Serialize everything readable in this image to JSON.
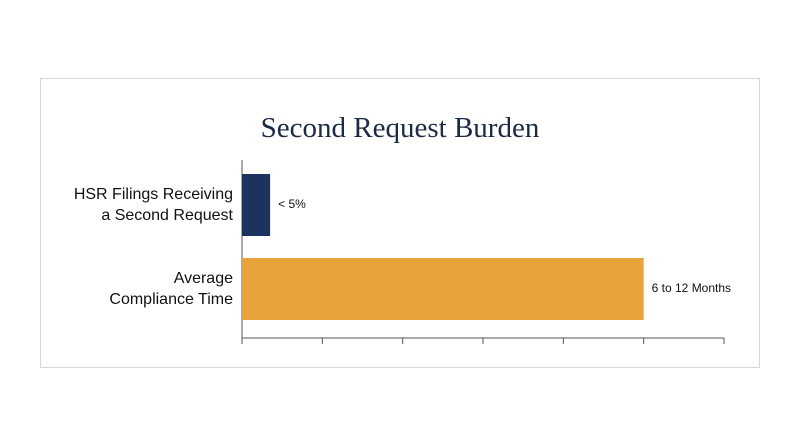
{
  "chart_data": {
    "type": "hbar",
    "title": "Second Request Burden",
    "categories": [
      "HSR Filings Receiving\na Second Request",
      "Average\nCompliance Time"
    ],
    "series": [
      {
        "colors": [
          "#1b335e",
          "#e8a33a"
        ],
        "values": [
          0.35,
          5
        ],
        "value_labels": [
          "< 5%",
          "6 to 12 Months"
        ]
      }
    ],
    "xlim": [
      0,
      6
    ],
    "xticks": [
      0,
      1,
      2,
      3,
      4,
      5,
      6
    ]
  }
}
